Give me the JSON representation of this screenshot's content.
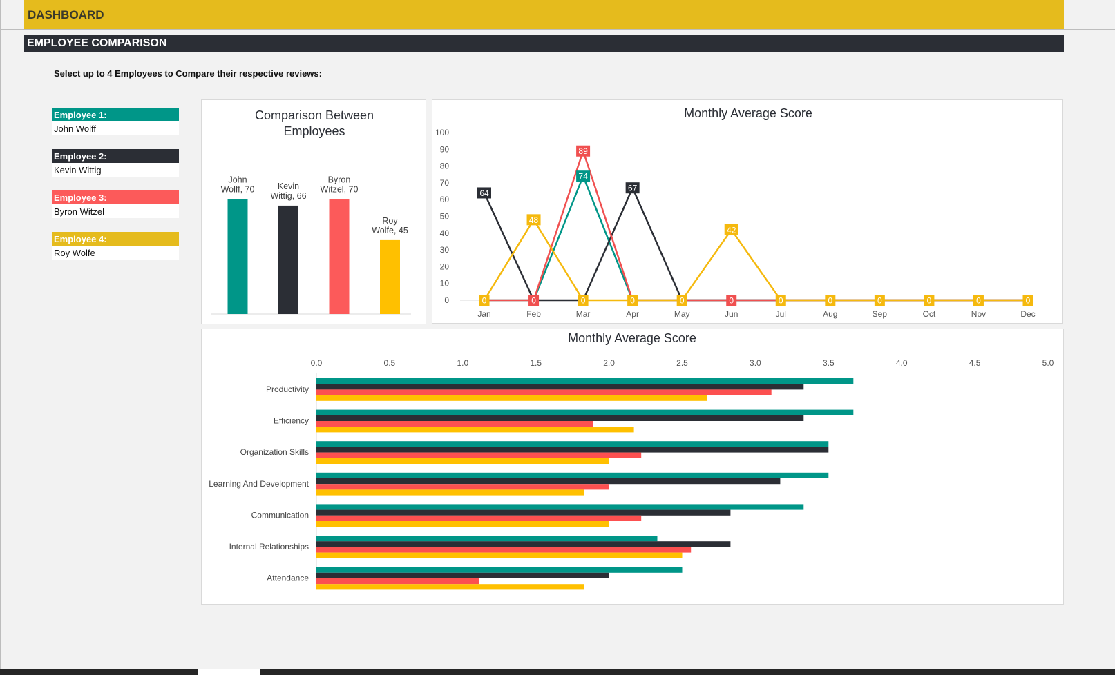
{
  "header": {
    "title": "DASHBOARD",
    "section": "EMPLOYEE COMPARISON",
    "instruction": "Select up to 4 Employees to Compare their respective reviews:"
  },
  "employees": [
    {
      "label": "Employee 1:",
      "name": "John Wolff",
      "color": "#009688"
    },
    {
      "label": "Employee 2:",
      "name": "Kevin Wittig",
      "color": "#2b2e35"
    },
    {
      "label": "Employee 3:",
      "name": "Byron Witzel",
      "color": "#fc5a5a"
    },
    {
      "label": "Employee 4:",
      "name": "Roy Wolfe",
      "color": "#e5bb1d"
    }
  ],
  "chart_data": [
    {
      "type": "bar",
      "title": "Comparison Between Employees",
      "categories": [
        "John Wolff",
        "Kevin Wittig",
        "Byron Witzel",
        "Roy Wolfe"
      ],
      "values": [
        70,
        66,
        70,
        45
      ],
      "data_labels": [
        [
          "John",
          "Wolff, 70"
        ],
        [
          "Kevin",
          "Wittig, 66"
        ],
        [
          "Byron",
          "Witzel, 70"
        ],
        [
          "Roy",
          "Wolfe, 45"
        ]
      ],
      "colors": [
        "#009688",
        "#2b2e35",
        "#fc5a5a",
        "#ffc000"
      ]
    },
    {
      "type": "line",
      "title": "Monthly Average Score",
      "categories": [
        "Jan",
        "Feb",
        "Mar",
        "Apr",
        "May",
        "Jun",
        "Jul",
        "Aug",
        "Sep",
        "Oct",
        "Nov",
        "Dec"
      ],
      "ylim": [
        0,
        100
      ],
      "yticks": [
        0,
        10,
        20,
        30,
        40,
        50,
        60,
        70,
        80,
        90,
        100
      ],
      "series": [
        {
          "color": "#009688",
          "values": [
            0,
            0,
            74,
            0,
            0,
            0,
            0,
            0,
            0,
            0,
            0,
            0
          ]
        },
        {
          "color": "#2b2e35",
          "values": [
            64,
            0,
            0,
            67,
            0,
            0,
            0,
            0,
            0,
            0,
            0,
            0
          ]
        },
        {
          "color": "#f05050",
          "values": [
            0,
            0,
            89,
            0,
            0,
            0,
            0,
            0,
            0,
            0,
            0,
            0
          ]
        },
        {
          "color": "#f5b90e",
          "values": [
            0,
            48,
            0,
            0,
            0,
            42,
            0,
            0,
            0,
            0,
            0,
            0
          ]
        }
      ]
    },
    {
      "type": "bar",
      "orientation": "horizontal",
      "title": "Monthly Average Score",
      "xlim": [
        0,
        5
      ],
      "xticks": [
        "0.0",
        "0.5",
        "1.0",
        "1.5",
        "2.0",
        "2.5",
        "3.0",
        "3.5",
        "4.0",
        "4.5",
        "5.0"
      ],
      "categories": [
        "Productivity",
        "Efficiency",
        "Organization Skills",
        "Learning And Development",
        "Communication",
        "Internal Relationships",
        "Attendance"
      ],
      "series": [
        {
          "color": "#009688",
          "values": [
            3.67,
            3.67,
            3.5,
            3.5,
            3.33,
            2.33,
            2.5
          ]
        },
        {
          "color": "#2b2e35",
          "values": [
            3.33,
            3.33,
            3.5,
            3.17,
            2.83,
            2.83,
            2.0
          ]
        },
        {
          "color": "#fc5050",
          "values": [
            3.11,
            1.89,
            2.22,
            2.0,
            2.22,
            2.56,
            1.11
          ]
        },
        {
          "color": "#ffc000",
          "values": [
            2.67,
            2.17,
            2.0,
            1.83,
            2.0,
            2.5,
            1.83
          ]
        }
      ]
    }
  ]
}
